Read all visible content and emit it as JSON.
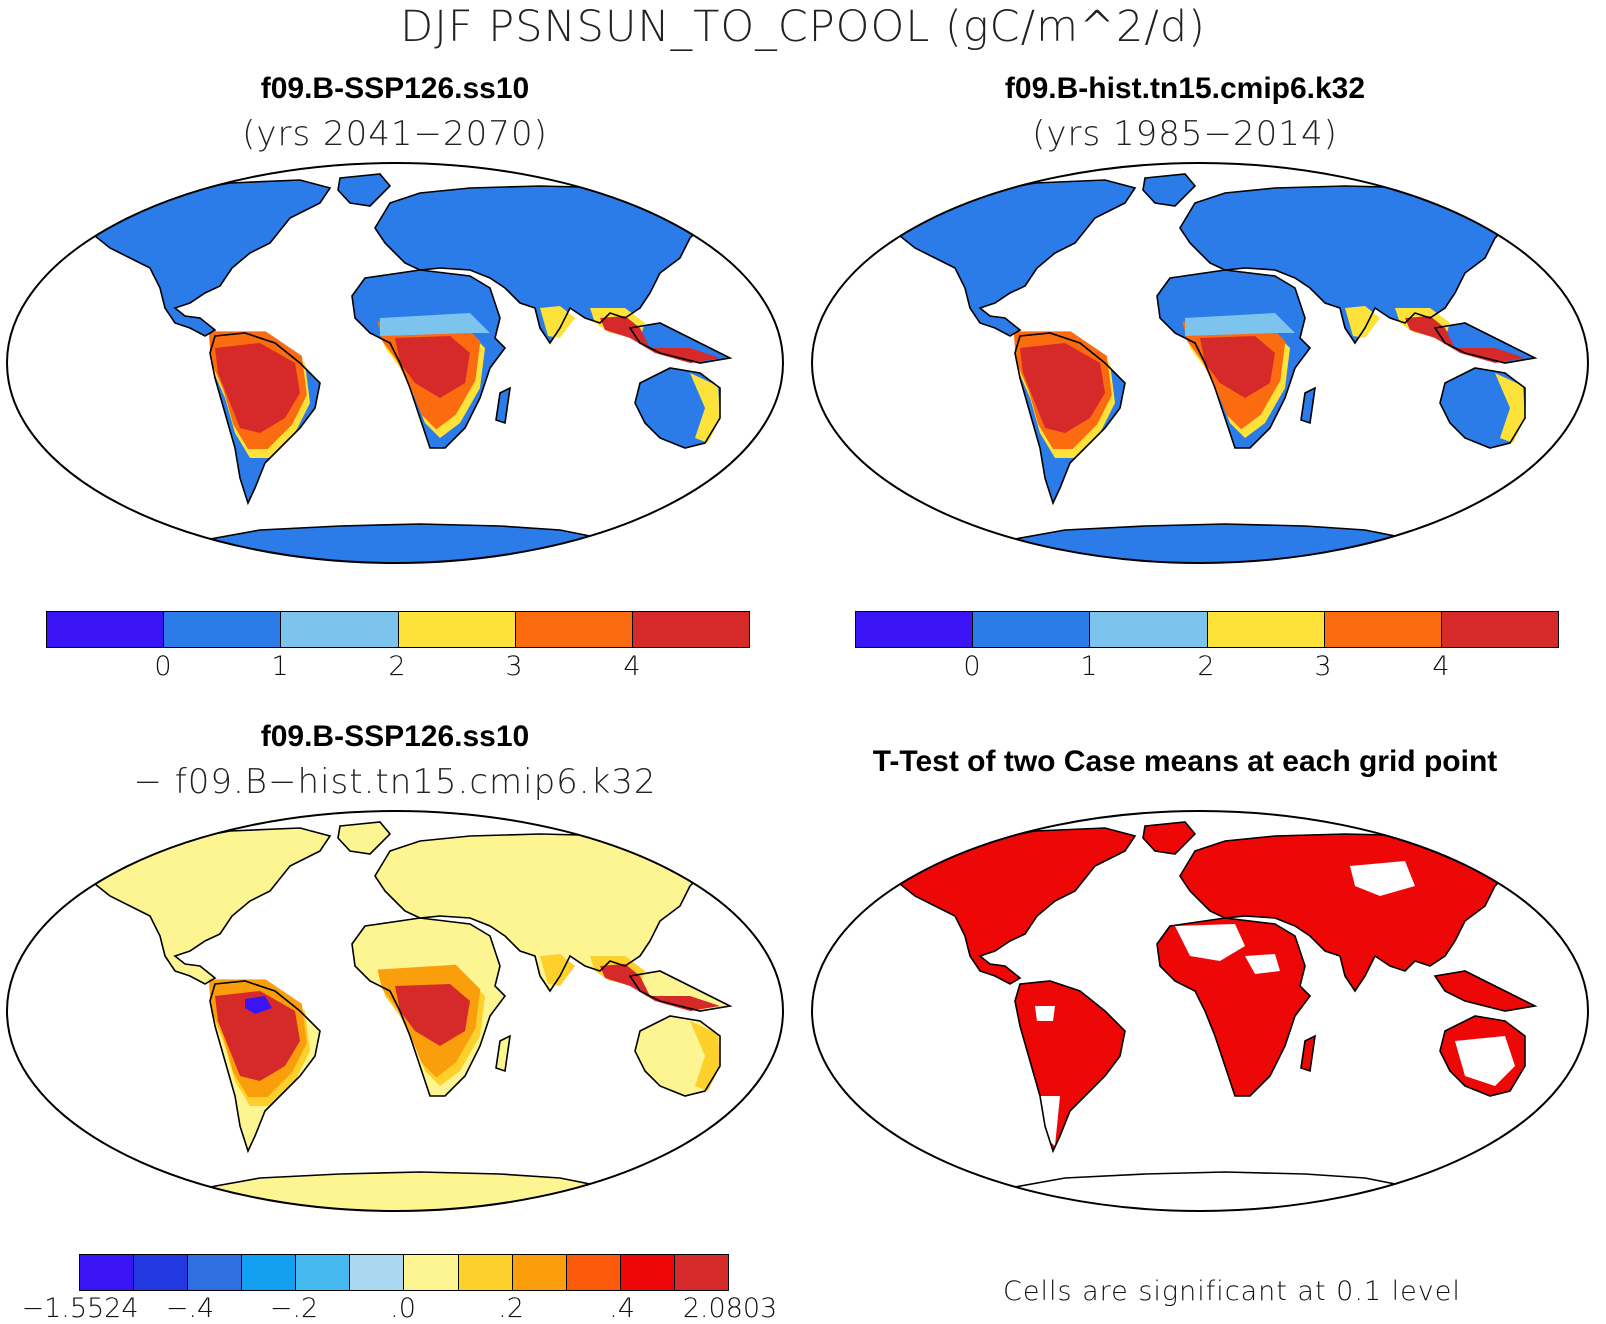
{
  "title": "DJF PSNSUN_TO_CPOOL (gC/m^2/d)",
  "panels": {
    "top_left": {
      "title": "f09.B-SSP126.ss10",
      "subtitle": "(yrs 2041−2070)"
    },
    "top_right": {
      "title": "f09.B-hist.tn15.cmip6.k32",
      "subtitle": "(yrs 1985−2014)"
    },
    "bottom_left": {
      "title": "f09.B-SSP126.ss10",
      "subtitle": "− f09.B−hist.tn15.cmip6.k32"
    },
    "bottom_right": {
      "title": "T-Test of two Case means at each grid point",
      "note": "Cells are significant at 0.1 level"
    }
  },
  "colorbar_abs": {
    "colors": [
      "#3b14f5",
      "#2b7be8",
      "#7cc4ee",
      "#fde23a",
      "#fb6b0f",
      "#d62a2a"
    ],
    "ticks": [
      "0",
      "1",
      "2",
      "3",
      "4"
    ]
  },
  "colorbar_diff": {
    "colors": [
      "#3b14f5",
      "#2238e0",
      "#2f6fe0",
      "#13a0f0",
      "#46b9f0",
      "#a9d8f0",
      "#fdf492",
      "#fdd02c",
      "#fb9e0c",
      "#fb5a0a",
      "#ee0707",
      "#d62a2a"
    ],
    "ticks": [
      "−1.5524",
      "−.4",
      "−.2",
      ".0",
      ".2",
      ".4",
      "2.0803"
    ]
  },
  "map_colors": {
    "ocean": "#ffffff",
    "abs_low": "#2b7be8",
    "abs_mid": "#7cc4ee",
    "abs_yellow": "#fde23a",
    "abs_orange": "#fb6b0f",
    "abs_high": "#d62a2a",
    "diff_base": "#fdf492",
    "diff_light_orange": "#fdd02c",
    "diff_orange": "#fb9e0c",
    "diff_red": "#d62a2a",
    "diff_blue": "#3b14f5",
    "sig": "#ee0707"
  }
}
